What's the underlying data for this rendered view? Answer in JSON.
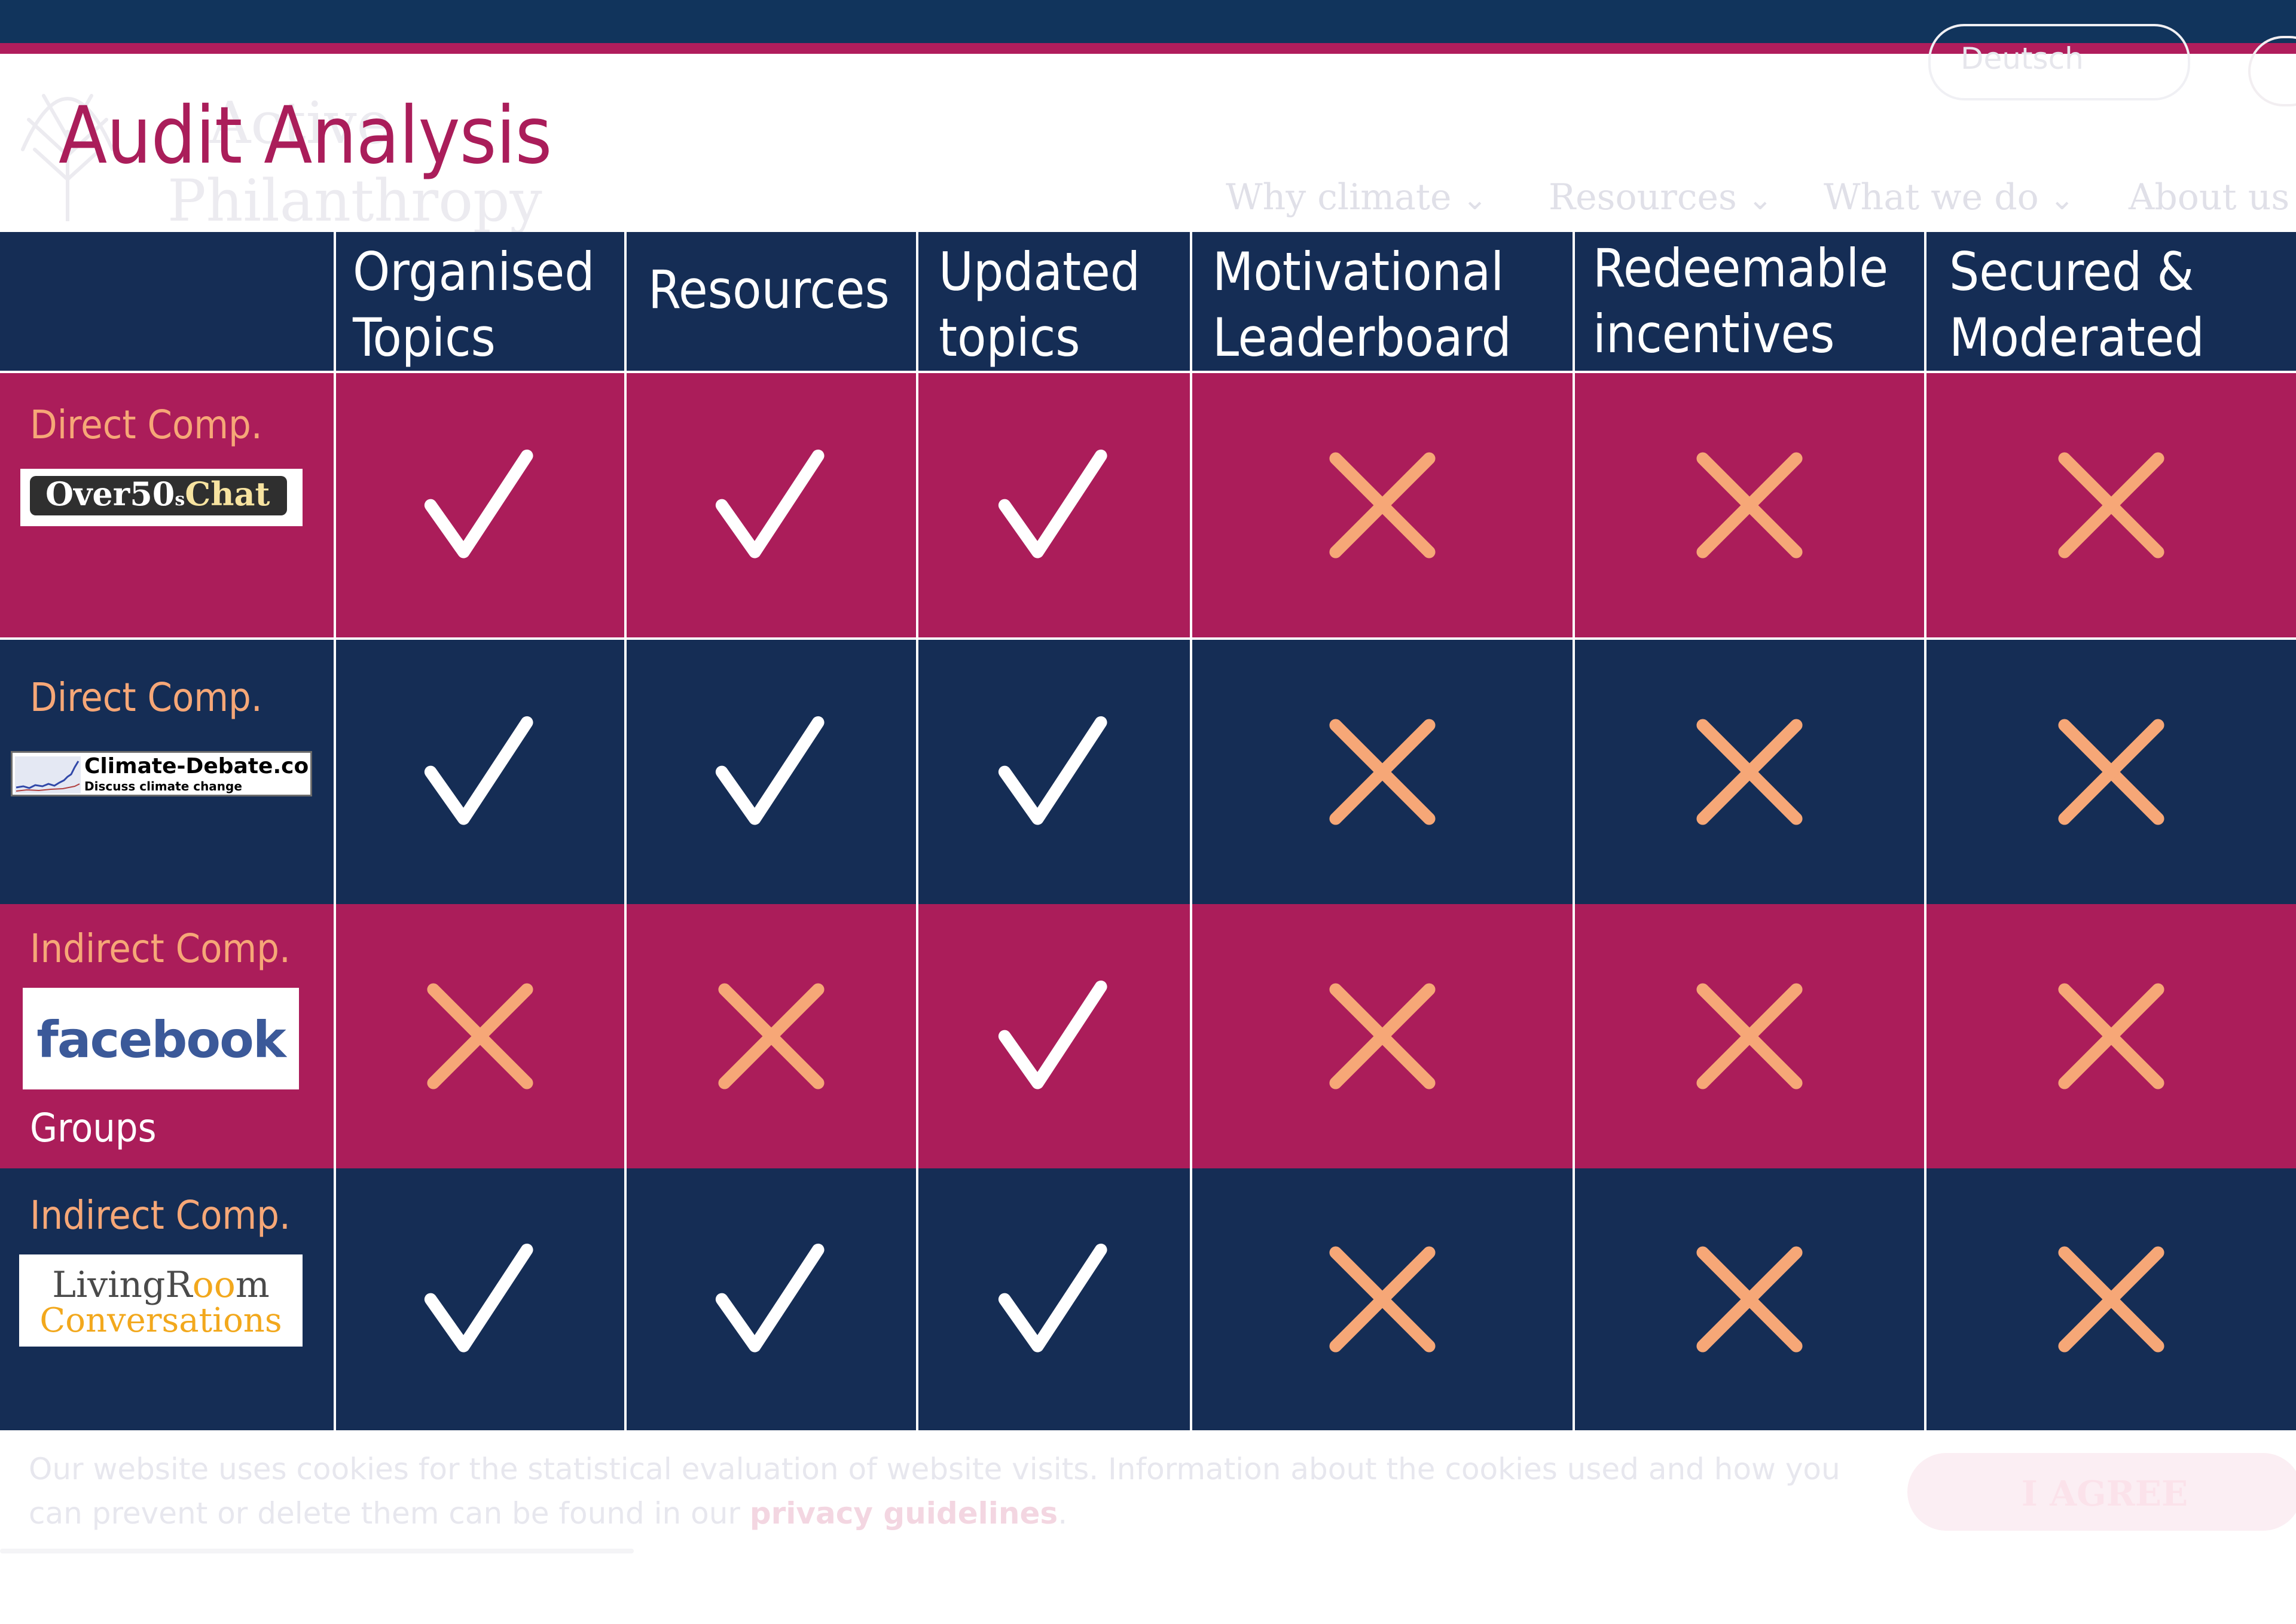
{
  "slide": {
    "title": "Audit Analysis",
    "colors": {
      "navy": "#152d55",
      "rose": "#ab1d5a",
      "check": "#ffffff",
      "cross": "#f6a777",
      "title": "#aa1d5a"
    }
  },
  "background_site": {
    "brand_line1": "Active",
    "brand_line2": "Philanthropy",
    "language_button": "Deutsch",
    "nav": [
      "Why climate",
      "Resources",
      "What we do",
      "About us"
    ]
  },
  "table": {
    "headers": [
      "Organised Topics",
      "Resources",
      "Updated topics",
      "Motivational Leaderboard",
      "Redeemable incentives",
      "Secured & Moderated"
    ],
    "header_lines": [
      [
        "Organised",
        "Topics"
      ],
      [
        "Resources"
      ],
      [
        "Updated",
        "topics"
      ],
      [
        "Motivational",
        "Leaderboard"
      ],
      [
        "Redeemable",
        "incentives"
      ],
      [
        "Secured &",
        "Moderated"
      ]
    ],
    "rows": [
      {
        "category": "Direct Comp.",
        "competitor_logo_text": "Over50sChat",
        "logo_parts": {
          "main": "Over50",
          "small": "s",
          "chat": "Chat"
        },
        "marks": [
          "check",
          "check",
          "check",
          "cross",
          "cross",
          "cross"
        ]
      },
      {
        "category": "Direct Comp.",
        "competitor_logo_text": "Climate-Debate.com",
        "logo_tagline": "Discuss climate change",
        "marks": [
          "check",
          "check",
          "check",
          "cross",
          "cross",
          "cross"
        ]
      },
      {
        "category": "Indirect Comp.",
        "competitor_logo_text": "facebook",
        "sub_label": "Groups",
        "marks": [
          "cross",
          "cross",
          "check",
          "cross",
          "cross",
          "cross"
        ]
      },
      {
        "category": "Indirect Comp.",
        "competitor_logo_text": "LivingRoom Conversations",
        "logo_parts": {
          "a": "LivingR",
          "oo": "oo",
          "b": "m",
          "line2": "Conversations"
        },
        "marks": [
          "check",
          "check",
          "check",
          "cross",
          "cross",
          "cross"
        ]
      }
    ]
  },
  "cookie_banner": {
    "text_before": "Our website uses cookies for the statistical evaluation of website visits. Information about the cookies used and how you can prevent or delete them can be found in our ",
    "link": "privacy guidelines",
    "text_after": ".",
    "button": "I AGREE"
  }
}
